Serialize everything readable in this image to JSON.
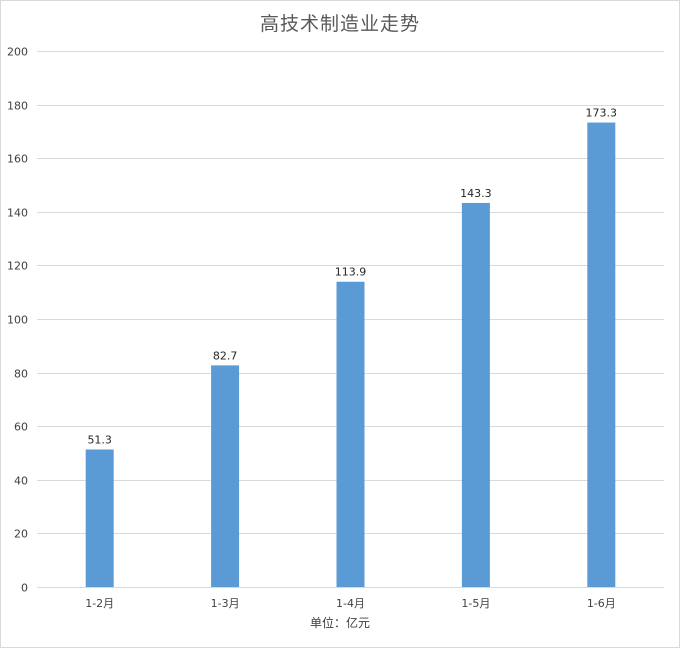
{
  "chart_data": {
    "type": "bar",
    "title": "高技术制造业走势",
    "xlabel": "单位：亿元",
    "ylabel": "",
    "categories": [
      "1-2月",
      "1-3月",
      "1-4月",
      "1-5月",
      "1-6月"
    ],
    "values": [
      51.3,
      82.7,
      113.9,
      143.3,
      173.3
    ],
    "data_labels": [
      "51.3",
      "82.7",
      "113.9",
      "143.3",
      "173.3"
    ],
    "ylim": [
      0,
      200
    ],
    "yticks": [
      "0",
      "20",
      "40",
      "60",
      "80",
      "100",
      "120",
      "140",
      "160",
      "180",
      "200"
    ],
    "grid": true,
    "legend": "none",
    "bar_color": "#5b9bd5",
    "grid_color": "#d9d9d9"
  }
}
